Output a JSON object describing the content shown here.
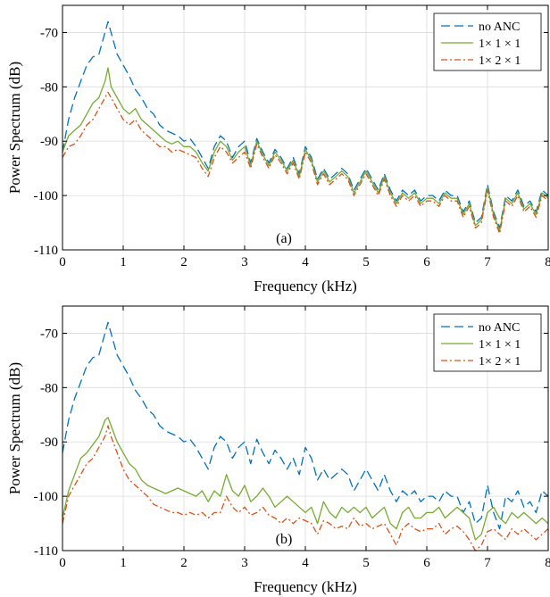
{
  "chart_data": [
    {
      "type": "line",
      "panel_label": "(a)",
      "xlabel": "Frequency (kHz)",
      "ylabel": "Power Spectrum (dB)",
      "xlim": [
        0,
        8
      ],
      "ylim": [
        -110,
        -65
      ],
      "xticks": [
        "0",
        "1",
        "2",
        "3",
        "4",
        "5",
        "6",
        "7",
        "8"
      ],
      "yticks": [
        "-70",
        "-80",
        "-90",
        "-100",
        "-110"
      ],
      "grid": true,
      "legend_position": "top-right",
      "x": [
        0,
        0.1,
        0.2,
        0.3,
        0.4,
        0.5,
        0.6,
        0.7,
        0.75,
        0.8,
        0.9,
        1.0,
        1.1,
        1.2,
        1.3,
        1.4,
        1.5,
        1.6,
        1.7,
        1.8,
        1.9,
        2.0,
        2.1,
        2.2,
        2.3,
        2.4,
        2.5,
        2.6,
        2.7,
        2.8,
        2.9,
        3.0,
        3.1,
        3.2,
        3.3,
        3.4,
        3.5,
        3.6,
        3.7,
        3.8,
        3.9,
        4.0,
        4.1,
        4.2,
        4.3,
        4.4,
        4.5,
        4.6,
        4.7,
        4.8,
        4.9,
        5.0,
        5.1,
        5.2,
        5.3,
        5.4,
        5.5,
        5.6,
        5.7,
        5.8,
        5.9,
        6.0,
        6.1,
        6.2,
        6.3,
        6.4,
        6.5,
        6.6,
        6.7,
        6.8,
        6.9,
        7.0,
        7.1,
        7.2,
        7.3,
        7.4,
        7.5,
        7.6,
        7.7,
        7.8,
        7.9,
        8.0
      ],
      "series": [
        {
          "name": "no ANC",
          "color": "#0072BD",
          "dash": "10,5",
          "values": [
            -92,
            -86,
            -82,
            -79,
            -76,
            -74.5,
            -74,
            -70,
            -68,
            -70,
            -74,
            -76,
            -78,
            -80.5,
            -82,
            -84,
            -85,
            -87,
            -88,
            -88.5,
            -89,
            -90,
            -89.5,
            -91,
            -93,
            -95,
            -91,
            -89,
            -90,
            -93,
            -91,
            -90,
            -94,
            -89.5,
            -92,
            -94,
            -91.5,
            -93,
            -95,
            -93,
            -96,
            -91,
            -93,
            -97,
            -95,
            -97,
            -96,
            -95,
            -96,
            -99,
            -97,
            -95,
            -97,
            -99,
            -96,
            -99,
            -101,
            -99,
            -100,
            -99,
            -101,
            -100,
            -100,
            -101,
            -99,
            -100,
            -100,
            -103,
            -101,
            -105,
            -104,
            -98,
            -103,
            -106,
            -100,
            -101,
            -99,
            -102,
            -101,
            -103,
            -99,
            -100
          ]
        },
        {
          "name": "1× 1 × 1",
          "color": "#77AC30",
          "dash": "",
          "values": [
            -92,
            -89,
            -88,
            -87,
            -85,
            -83,
            -82,
            -79,
            -76.5,
            -80,
            -82,
            -84,
            -85,
            -84,
            -86,
            -87,
            -88,
            -89,
            -90,
            -90.5,
            -90,
            -91,
            -91,
            -92,
            -94,
            -95.5,
            -92,
            -90,
            -91,
            -93.5,
            -92,
            -91,
            -94.5,
            -90,
            -92.5,
            -94.5,
            -92,
            -93.5,
            -95.5,
            -93.5,
            -96.5,
            -91.5,
            -93.5,
            -97.5,
            -95.5,
            -97.5,
            -96.5,
            -95.5,
            -96.5,
            -99.5,
            -97.5,
            -95.5,
            -97.5,
            -99.5,
            -96.5,
            -99.5,
            -101.5,
            -99.5,
            -100.5,
            -99.5,
            -101.5,
            -100.5,
            -100.5,
            -101.5,
            -99.5,
            -100.5,
            -100.5,
            -103.5,
            -101.5,
            -105.5,
            -104.5,
            -98.5,
            -103.5,
            -106.5,
            -100.5,
            -101.5,
            -99.5,
            -102.5,
            -101.5,
            -103.5,
            -99.5,
            -100.5
          ]
        },
        {
          "name": "1× 2 × 1",
          "color": "#D95319",
          "dash": "7,3,2,3",
          "values": [
            -93,
            -91,
            -90.5,
            -89,
            -87,
            -86,
            -84,
            -82,
            -81,
            -82,
            -84,
            -86,
            -87,
            -86,
            -88,
            -89,
            -90,
            -91,
            -91,
            -92,
            -91.5,
            -92,
            -92.5,
            -93,
            -95,
            -96.5,
            -93,
            -91,
            -92,
            -94,
            -93,
            -92,
            -95,
            -90.5,
            -93,
            -95,
            -92.5,
            -94,
            -96,
            -94,
            -97,
            -92,
            -94,
            -98,
            -96,
            -98,
            -97,
            -96,
            -97,
            -100,
            -98,
            -96,
            -98,
            -100,
            -97,
            -100,
            -102,
            -100,
            -101,
            -100,
            -102,
            -101,
            -101,
            -102,
            -100,
            -101,
            -101,
            -104,
            -102,
            -106,
            -105,
            -99,
            -104,
            -107,
            -101,
            -102,
            -100,
            -103,
            -102,
            -104,
            -100,
            -101
          ]
        }
      ]
    },
    {
      "type": "line",
      "panel_label": "(b)",
      "xlabel": "Frequency (kHz)",
      "ylabel": "Power Spectrum (dB)",
      "xlim": [
        0,
        8
      ],
      "ylim": [
        -110,
        -65
      ],
      "xticks": [
        "0",
        "1",
        "2",
        "3",
        "4",
        "5",
        "6",
        "7",
        "8"
      ],
      "yticks": [
        "-70",
        "-80",
        "-90",
        "-100",
        "-110"
      ],
      "grid": true,
      "legend_position": "top-right",
      "x": [
        0,
        0.1,
        0.2,
        0.3,
        0.4,
        0.5,
        0.6,
        0.7,
        0.75,
        0.8,
        0.9,
        1.0,
        1.1,
        1.2,
        1.3,
        1.4,
        1.5,
        1.6,
        1.7,
        1.8,
        1.9,
        2.0,
        2.1,
        2.2,
        2.3,
        2.4,
        2.5,
        2.6,
        2.7,
        2.8,
        2.9,
        3.0,
        3.1,
        3.2,
        3.3,
        3.4,
        3.5,
        3.6,
        3.7,
        3.8,
        3.9,
        4.0,
        4.1,
        4.2,
        4.3,
        4.4,
        4.5,
        4.6,
        4.7,
        4.8,
        4.9,
        5.0,
        5.1,
        5.2,
        5.3,
        5.4,
        5.5,
        5.6,
        5.7,
        5.8,
        5.9,
        6.0,
        6.1,
        6.2,
        6.3,
        6.4,
        6.5,
        6.6,
        6.7,
        6.8,
        6.9,
        7.0,
        7.1,
        7.2,
        7.3,
        7.4,
        7.5,
        7.6,
        7.7,
        7.8,
        7.9,
        8.0
      ],
      "series": [
        {
          "name": "no ANC",
          "color": "#0072BD",
          "dash": "10,5",
          "values": [
            -92,
            -86,
            -82,
            -79,
            -76,
            -74.5,
            -74,
            -70,
            -68,
            -70,
            -74,
            -76,
            -78,
            -80.5,
            -82,
            -84,
            -85,
            -87,
            -88,
            -88.5,
            -89,
            -90,
            -89.5,
            -91,
            -93,
            -95,
            -91,
            -89,
            -90,
            -93,
            -91,
            -90,
            -94,
            -89.5,
            -92,
            -94,
            -91.5,
            -93,
            -95,
            -93,
            -96,
            -91,
            -93,
            -97,
            -95,
            -97,
            -96,
            -95,
            -96,
            -99,
            -97,
            -95,
            -97,
            -99,
            -96,
            -99,
            -101,
            -99,
            -100,
            -99,
            -101,
            -100,
            -100,
            -101,
            -99,
            -100,
            -100,
            -103,
            -101,
            -105,
            -104,
            -98,
            -103,
            -106,
            -100,
            -101,
            -99,
            -102,
            -101,
            -103,
            -99,
            -100
          ]
        },
        {
          "name": "1× 1 × 1",
          "color": "#77AC30",
          "dash": "",
          "values": [
            -104,
            -99,
            -96,
            -93,
            -92,
            -90.5,
            -89,
            -86,
            -85.5,
            -87,
            -90,
            -92,
            -94,
            -95,
            -97,
            -98,
            -98.5,
            -99,
            -99.5,
            -99,
            -98.5,
            -99,
            -99.5,
            -100,
            -99,
            -101,
            -99,
            -100,
            -96,
            -99,
            -100,
            -98,
            -101,
            -100,
            -98.5,
            -100,
            -102,
            -101,
            -100,
            -101,
            -102,
            -103,
            -102,
            -105,
            -101,
            -103,
            -104,
            -102,
            -103,
            -102,
            -103,
            -102,
            -104,
            -103,
            -102,
            -105,
            -106,
            -103,
            -102,
            -104,
            -104,
            -103,
            -103,
            -102,
            -104,
            -103,
            -102,
            -103,
            -104,
            -108,
            -107,
            -103,
            -102,
            -104,
            -105,
            -103,
            -104,
            -103,
            -104,
            -105,
            -104,
            -105
          ]
        },
        {
          "name": "1× 2 × 1",
          "color": "#D95319",
          "dash": "7,3,2,3",
          "values": [
            -105,
            -100,
            -98,
            -96,
            -94,
            -93,
            -91,
            -89,
            -87,
            -89,
            -92,
            -95,
            -97,
            -98,
            -99,
            -100,
            -101.5,
            -102,
            -102.5,
            -103,
            -103,
            -103.5,
            -103,
            -103.5,
            -103,
            -104,
            -103,
            -103,
            -100,
            -102,
            -103,
            -102,
            -103.5,
            -103,
            -102,
            -103.5,
            -104,
            -105,
            -104,
            -105,
            -104,
            -104.5,
            -105,
            -107,
            -104.5,
            -105,
            -106,
            -105.5,
            -106,
            -104,
            -105.5,
            -105,
            -106,
            -105.5,
            -105,
            -107,
            -109,
            -106,
            -105,
            -106,
            -106.5,
            -106,
            -106,
            -105,
            -107,
            -106,
            -105.5,
            -106.5,
            -108,
            -110,
            -109,
            -106.5,
            -106,
            -107,
            -108,
            -106,
            -107,
            -106,
            -107,
            -108,
            -107,
            -106
          ]
        }
      ]
    }
  ]
}
